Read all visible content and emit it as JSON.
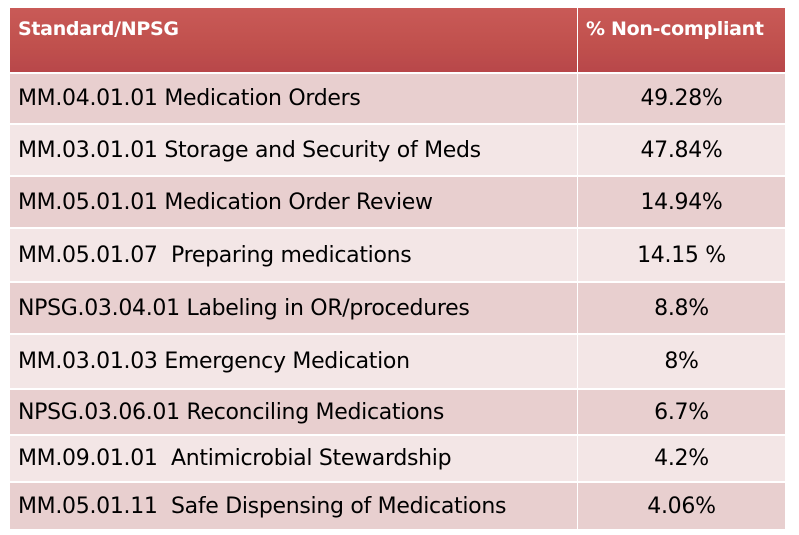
{
  "table": {
    "header": [
      "Standard/NPSG",
      "% Non-compliant"
    ],
    "rows": [
      [
        "MM.04.01.01 Medication Orders",
        "49.28%"
      ],
      [
        "MM.03.01.01 Storage and Security of Meds",
        "47.84%"
      ],
      [
        "MM.05.01.01 Medication Order Review",
        "14.94%"
      ],
      [
        "MM.05.01.07  Preparing medications",
        "14.15 %"
      ],
      [
        "NPSG.03.04.01 Labeling in OR/procedures",
        "8.8%"
      ],
      [
        "MM.03.01.03 Emergency Medication",
        "8%"
      ],
      [
        "NPSG.03.06.01 Reconciling Medications",
        "6.7%"
      ],
      [
        "MM.09.01.01  Antimicrobial Stewardship",
        "4.2%"
      ],
      [
        "MM.05.01.11  Safe Dispensing of Medications",
        "4.06%"
      ]
    ]
  }
}
